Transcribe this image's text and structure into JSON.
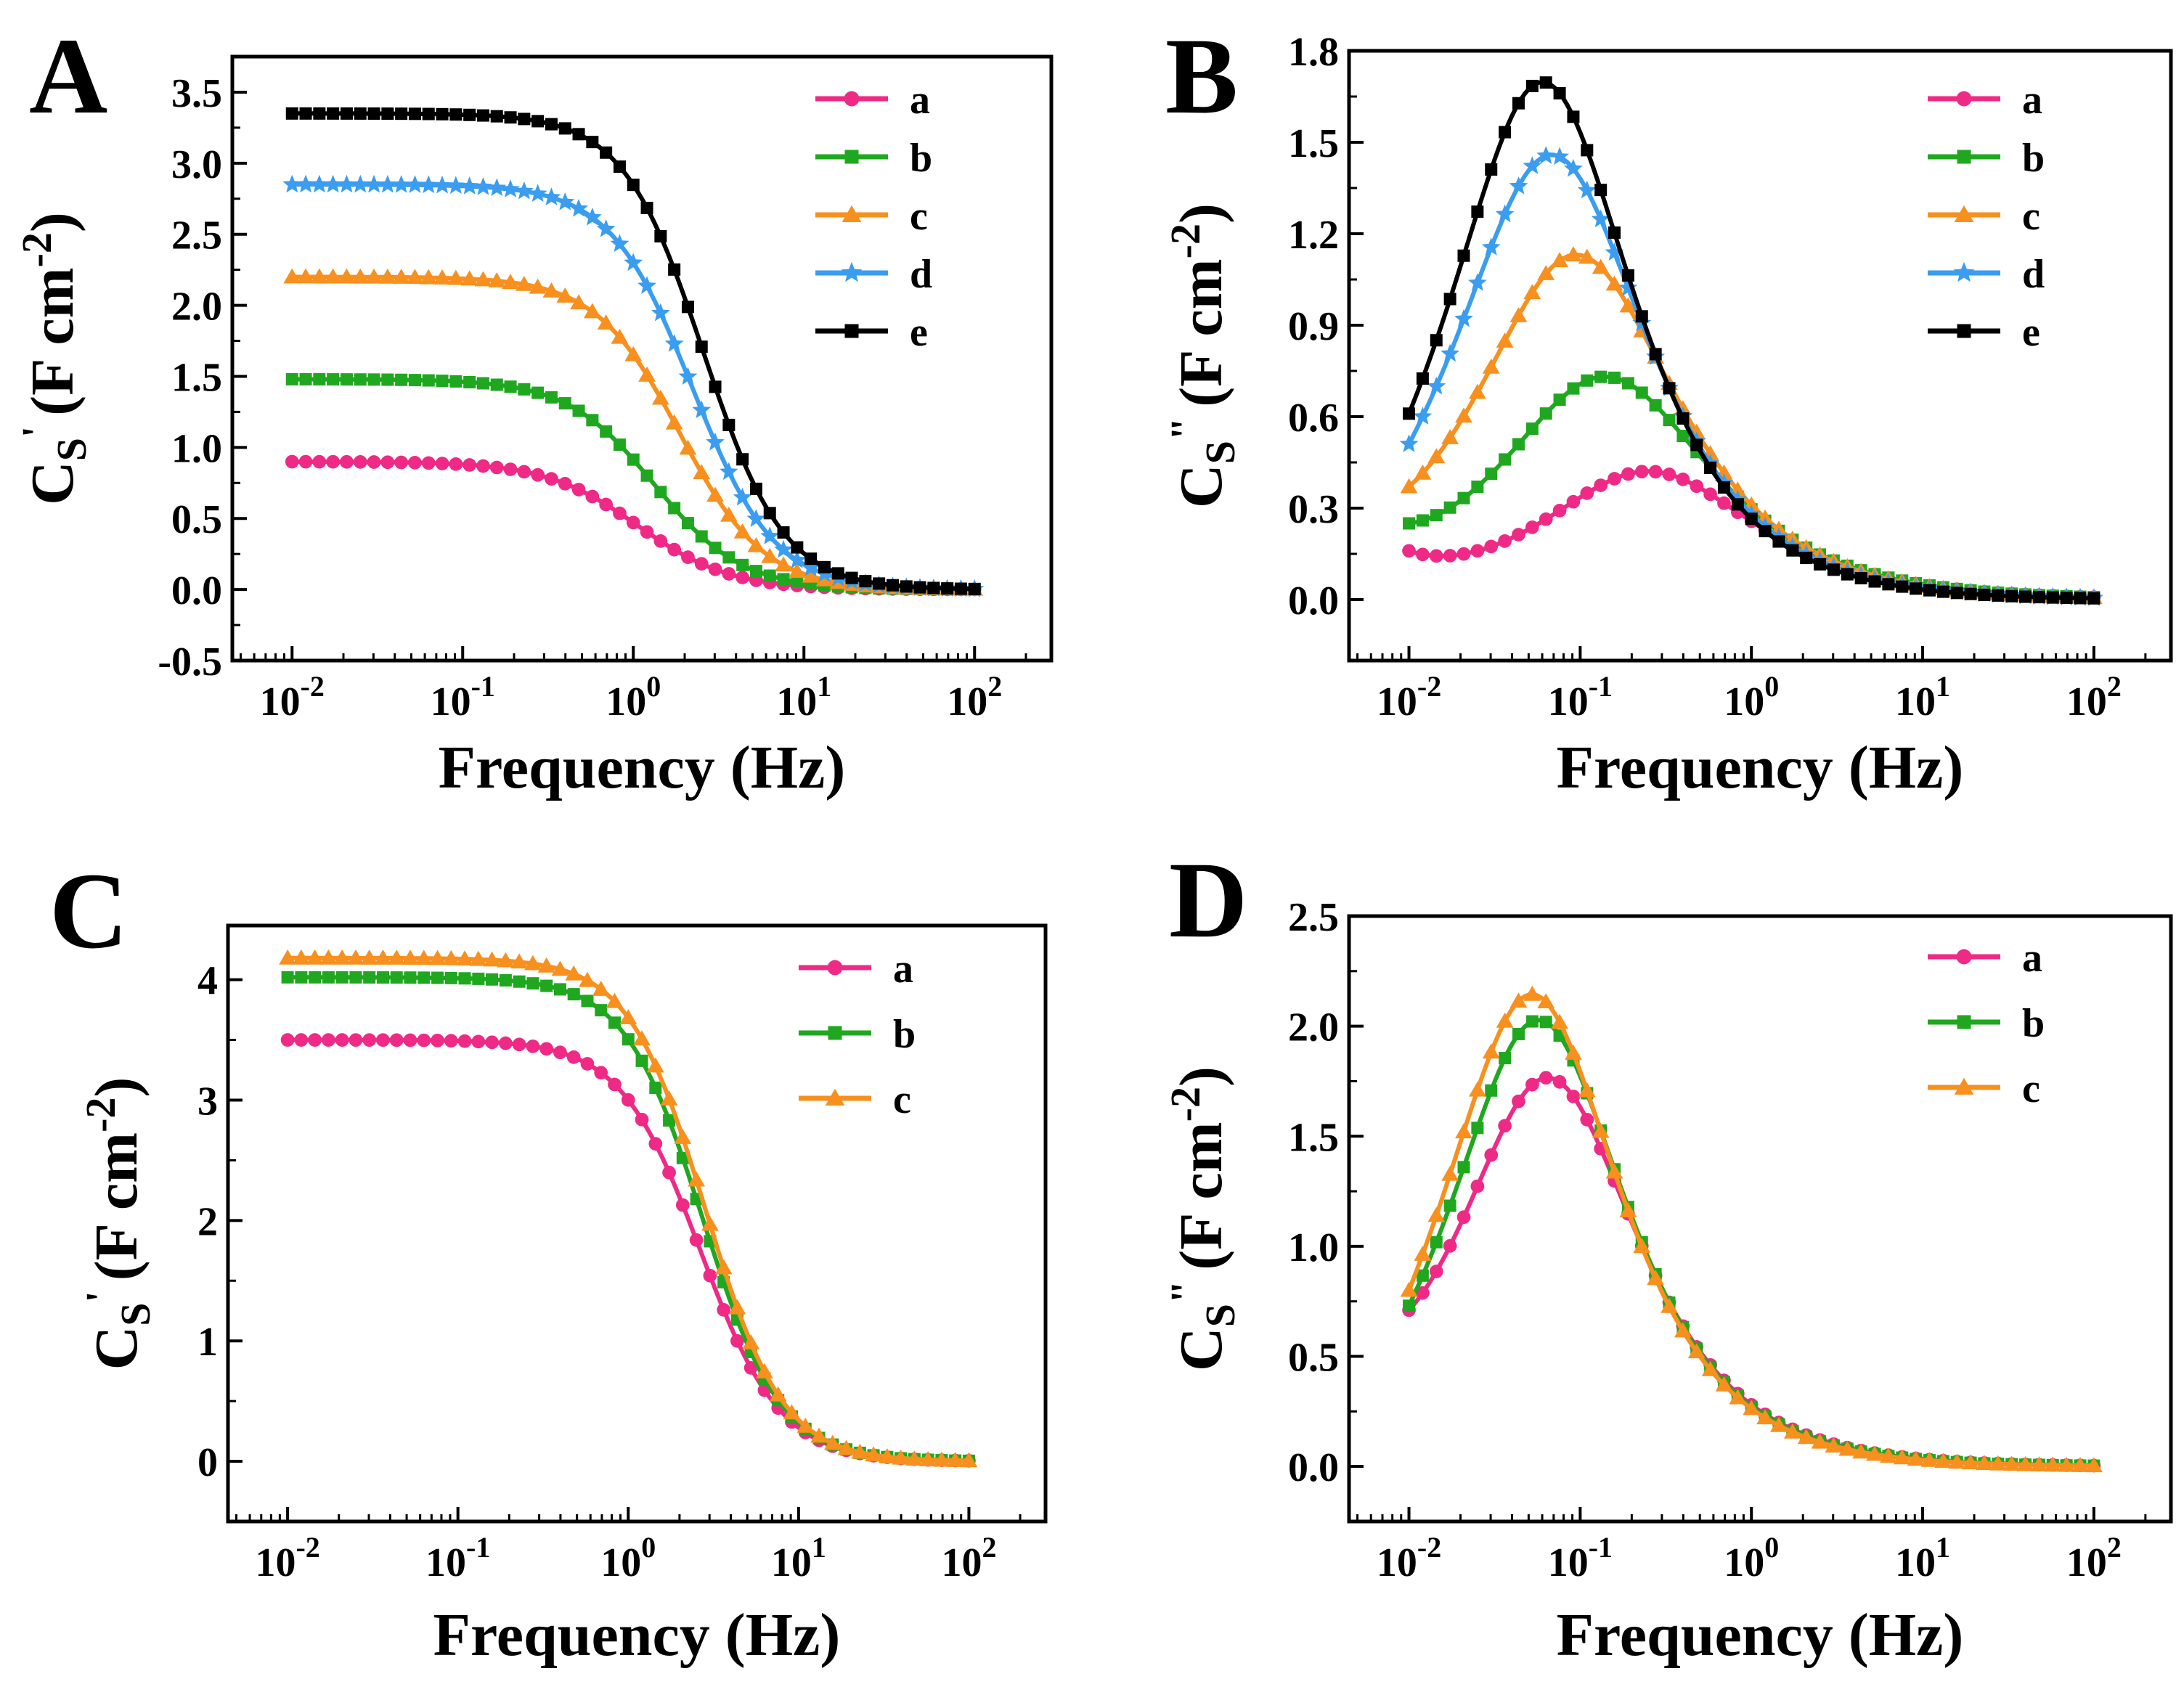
{
  "series_styles": {
    "a": {
      "color": "#ee2a86",
      "marker": "circle"
    },
    "b": {
      "color": "#1fa81f",
      "marker": "square"
    },
    "c": {
      "color": "#f7901e",
      "marker": "triangle"
    },
    "d": {
      "color": "#3a9df0",
      "marker": "star"
    },
    "e": {
      "color": "#000000",
      "marker": "square"
    }
  },
  "chart_data": [
    {
      "panel": "A",
      "type": "line",
      "xscale": "log",
      "xlim_exponent": [
        -2.35,
        2.45
      ],
      "xticks": [
        {
          "exp": "-2"
        },
        {
          "exp": "-1"
        },
        {
          "exp": "0"
        },
        {
          "exp": "1"
        },
        {
          "exp": "2"
        }
      ],
      "xlabel": "Frequency (Hz)",
      "ylabel": {
        "base": "C",
        "sub": "S",
        "prime": "'",
        "unit": "(F cm",
        "sup": "-2",
        "close": ")"
      },
      "ylim": [
        -0.5,
        3.75
      ],
      "yticks": [
        "-0.5",
        "0.0",
        "0.5",
        "1.0",
        "1.5",
        "2.0",
        "2.5",
        "3.0",
        "3.5"
      ],
      "legend_position": "top-right",
      "model": "real",
      "series": [
        {
          "name": "a",
          "low": 0.9,
          "tau": 0.15,
          "alpha": 0.8
        },
        {
          "name": "b",
          "low": 1.48,
          "tau": 0.12,
          "alpha": 0.85
        },
        {
          "name": "c",
          "low": 2.2,
          "tau": 0.085,
          "alpha": 0.88
        },
        {
          "name": "d",
          "low": 2.85,
          "tau": 0.072,
          "alpha": 0.9
        },
        {
          "name": "e",
          "low": 3.35,
          "tau": 0.062,
          "alpha": 0.92
        }
      ]
    },
    {
      "panel": "B",
      "type": "line",
      "xscale": "log",
      "xlim_exponent": [
        -2.35,
        2.45
      ],
      "xticks": [
        {
          "exp": "-2"
        },
        {
          "exp": "-1"
        },
        {
          "exp": "0"
        },
        {
          "exp": "1"
        },
        {
          "exp": "2"
        }
      ],
      "xlabel": "Frequency (Hz)",
      "ylabel": {
        "base": "C",
        "sub": "S",
        "prime": "\"",
        "unit": "(F cm",
        "sup": "-2",
        "close": ")"
      },
      "ylim": [
        -0.2,
        1.8
      ],
      "yticks": [
        "0.0",
        "0.3",
        "0.6",
        "0.9",
        "1.2",
        "1.5",
        "1.8"
      ],
      "legend_position": "top-right",
      "model": "imag",
      "series": [
        {
          "name": "a",
          "peak_freq": 0.25,
          "peak": 0.42,
          "width": 0.56,
          "low": 0.16
        },
        {
          "name": "b",
          "peak_freq": 0.14,
          "peak": 0.73,
          "width": 0.55,
          "low": 0.25
        },
        {
          "name": "c",
          "peak_freq": 0.095,
          "peak": 1.13,
          "width": 0.52,
          "low": 0.37
        },
        {
          "name": "d",
          "peak_freq": 0.068,
          "peak": 1.46,
          "width": 0.5,
          "low": 0.51
        },
        {
          "name": "e",
          "peak_freq": 0.06,
          "peak": 1.7,
          "width": 0.48,
          "low": 0.61
        }
      ]
    },
    {
      "panel": "C",
      "type": "line",
      "xscale": "log",
      "xlim_exponent": [
        -2.35,
        2.45
      ],
      "xticks": [
        {
          "exp": "-2"
        },
        {
          "exp": "-1"
        },
        {
          "exp": "0"
        },
        {
          "exp": "1"
        },
        {
          "exp": "2"
        }
      ],
      "xlabel": "Frequency (Hz)",
      "ylabel": {
        "base": "C",
        "sub": "S",
        "prime": "'",
        "unit": "(F cm",
        "sup": "-2",
        "close": ")"
      },
      "ylim": [
        -0.5,
        4.45
      ],
      "yticks": [
        "0",
        "1",
        "2",
        "3",
        "4"
      ],
      "legend_position": "top-right",
      "model": "real",
      "series": [
        {
          "name": "a",
          "low": 3.5,
          "tau": 0.06,
          "alpha": 0.92
        },
        {
          "name": "b",
          "low": 4.02,
          "tau": 0.058,
          "alpha": 0.95
        },
        {
          "name": "c",
          "low": 4.18,
          "tau": 0.056,
          "alpha": 0.96
        }
      ]
    },
    {
      "panel": "D",
      "type": "line",
      "xscale": "log",
      "xlim_exponent": [
        -2.35,
        2.45
      ],
      "xticks": [
        {
          "exp": "-2"
        },
        {
          "exp": "-1"
        },
        {
          "exp": "0"
        },
        {
          "exp": "1"
        },
        {
          "exp": "2"
        }
      ],
      "xlabel": "Frequency (Hz)",
      "ylabel": {
        "base": "C",
        "sub": "S",
        "prime": "\"",
        "unit": "(F cm",
        "sup": "-2",
        "close": ")"
      },
      "ylim": [
        -0.25,
        2.5
      ],
      "yticks": [
        "0.0",
        "0.5",
        "1.0",
        "1.5",
        "2.0",
        "2.5"
      ],
      "legend_position": "top-right",
      "model": "imag",
      "series": [
        {
          "name": "a",
          "peak_freq": 0.065,
          "peak": 1.76,
          "width": 0.47,
          "low": 0.71
        },
        {
          "name": "b",
          "peak_freq": 0.057,
          "peak": 2.03,
          "width": 0.46,
          "low": 0.73
        },
        {
          "name": "c",
          "peak_freq": 0.052,
          "peak": 2.15,
          "width": 0.46,
          "low": 0.8
        }
      ]
    }
  ]
}
